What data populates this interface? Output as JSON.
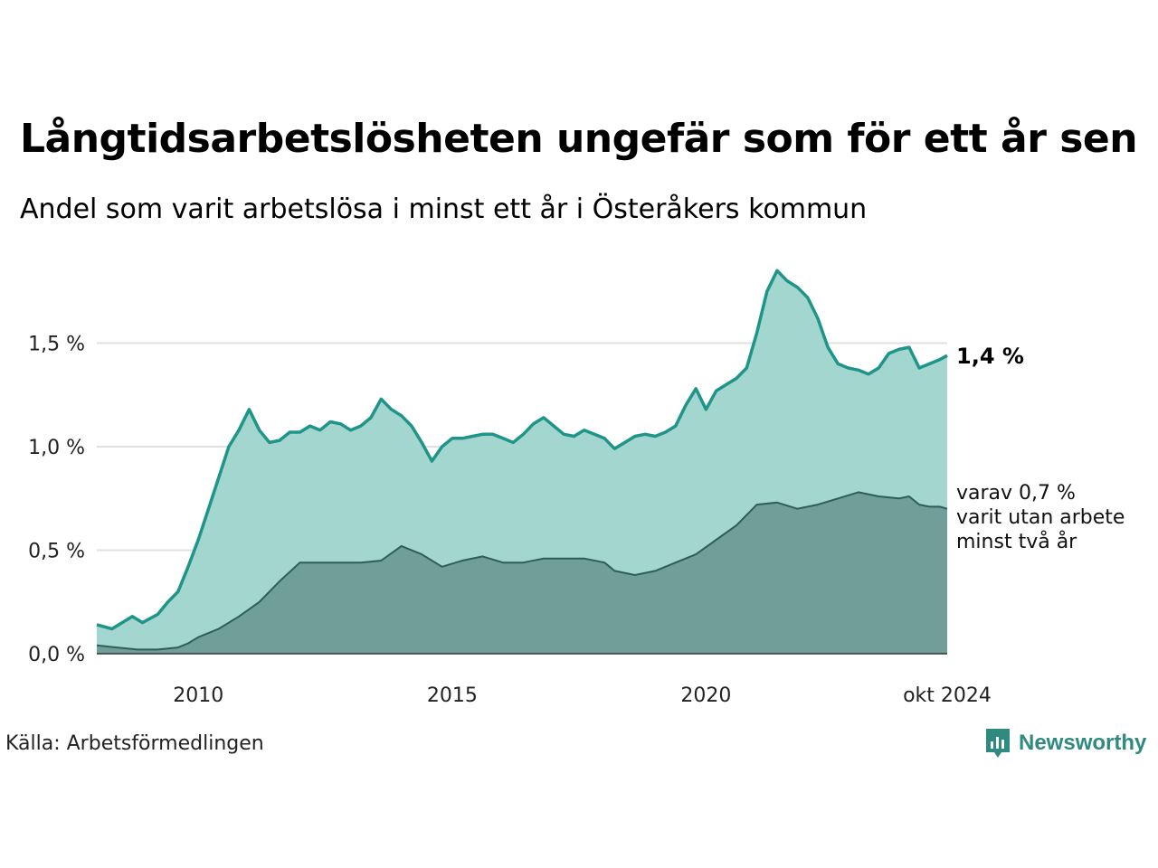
{
  "title": "Långtidsarbetslösheten ungefär som för ett år sen",
  "subtitle": "Andel som varit arbetslösa i minst ett år i Österåkers kommun",
  "source": "Källa: Arbetsförmedlingen",
  "brand": "Newsworthy",
  "end_label": "1,4 %",
  "sub_label_lines": [
    "varav 0,7 %",
    "varit utan arbete",
    "minst två år"
  ],
  "colors": {
    "total_line": "#1f9488",
    "total_fill": "#a3d6cf",
    "sub_line": "#2e5e57",
    "sub_fill": "#6f9f98",
    "grid": "#e0e0e0",
    "brand": "#2f8a80"
  },
  "chart_data": {
    "type": "area",
    "title": "Långtidsarbetslösheten ungefär som för ett år sen",
    "ylabel": "",
    "xlabel": "",
    "xlim": [
      2008.0,
      2024.75
    ],
    "ylim": [
      0,
      1.9
    ],
    "y_ticks": [
      0.0,
      0.5,
      1.0,
      1.5
    ],
    "y_tick_labels": [
      "0,0 %",
      "0,5 %",
      "1,0 %",
      "1,5 %"
    ],
    "x_ticks": [
      2010,
      2015,
      2020,
      2024.75
    ],
    "x_tick_labels": [
      "2010",
      "2015",
      "2020",
      "okt 2024"
    ],
    "series": [
      {
        "name": "Arbetslösa minst ett år",
        "points": [
          [
            2008.0,
            0.14
          ],
          [
            2008.3,
            0.12
          ],
          [
            2008.7,
            0.18
          ],
          [
            2008.9,
            0.15
          ],
          [
            2009.2,
            0.19
          ],
          [
            2009.4,
            0.25
          ],
          [
            2009.6,
            0.3
          ],
          [
            2009.8,
            0.42
          ],
          [
            2010.0,
            0.55
          ],
          [
            2010.2,
            0.7
          ],
          [
            2010.4,
            0.85
          ],
          [
            2010.6,
            1.0
          ],
          [
            2010.8,
            1.08
          ],
          [
            2011.0,
            1.18
          ],
          [
            2011.2,
            1.08
          ],
          [
            2011.4,
            1.02
          ],
          [
            2011.6,
            1.03
          ],
          [
            2011.8,
            1.07
          ],
          [
            2012.0,
            1.07
          ],
          [
            2012.2,
            1.1
          ],
          [
            2012.4,
            1.08
          ],
          [
            2012.6,
            1.12
          ],
          [
            2012.8,
            1.11
          ],
          [
            2013.0,
            1.08
          ],
          [
            2013.2,
            1.1
          ],
          [
            2013.4,
            1.14
          ],
          [
            2013.6,
            1.23
          ],
          [
            2013.8,
            1.18
          ],
          [
            2014.0,
            1.15
          ],
          [
            2014.2,
            1.1
          ],
          [
            2014.4,
            1.02
          ],
          [
            2014.6,
            0.93
          ],
          [
            2014.8,
            1.0
          ],
          [
            2015.0,
            1.04
          ],
          [
            2015.2,
            1.04
          ],
          [
            2015.4,
            1.05
          ],
          [
            2015.6,
            1.06
          ],
          [
            2015.8,
            1.06
          ],
          [
            2016.0,
            1.04
          ],
          [
            2016.2,
            1.02
          ],
          [
            2016.4,
            1.06
          ],
          [
            2016.6,
            1.11
          ],
          [
            2016.8,
            1.14
          ],
          [
            2017.0,
            1.1
          ],
          [
            2017.2,
            1.06
          ],
          [
            2017.4,
            1.05
          ],
          [
            2017.6,
            1.08
          ],
          [
            2017.8,
            1.06
          ],
          [
            2018.0,
            1.04
          ],
          [
            2018.2,
            0.99
          ],
          [
            2018.4,
            1.02
          ],
          [
            2018.6,
            1.05
          ],
          [
            2018.8,
            1.06
          ],
          [
            2019.0,
            1.05
          ],
          [
            2019.2,
            1.07
          ],
          [
            2019.4,
            1.1
          ],
          [
            2019.6,
            1.2
          ],
          [
            2019.8,
            1.28
          ],
          [
            2020.0,
            1.18
          ],
          [
            2020.2,
            1.27
          ],
          [
            2020.4,
            1.3
          ],
          [
            2020.6,
            1.33
          ],
          [
            2020.8,
            1.38
          ],
          [
            2021.0,
            1.55
          ],
          [
            2021.2,
            1.75
          ],
          [
            2021.4,
            1.85
          ],
          [
            2021.6,
            1.8
          ],
          [
            2021.8,
            1.77
          ],
          [
            2022.0,
            1.72
          ],
          [
            2022.2,
            1.62
          ],
          [
            2022.4,
            1.48
          ],
          [
            2022.6,
            1.4
          ],
          [
            2022.8,
            1.38
          ],
          [
            2023.0,
            1.37
          ],
          [
            2023.2,
            1.35
          ],
          [
            2023.4,
            1.38
          ],
          [
            2023.6,
            1.45
          ],
          [
            2023.8,
            1.47
          ],
          [
            2024.0,
            1.48
          ],
          [
            2024.2,
            1.38
          ],
          [
            2024.4,
            1.4
          ],
          [
            2024.6,
            1.42
          ],
          [
            2024.75,
            1.44
          ]
        ]
      },
      {
        "name": "varav minst två år",
        "points": [
          [
            2008.0,
            0.04
          ],
          [
            2008.4,
            0.03
          ],
          [
            2008.8,
            0.02
          ],
          [
            2009.2,
            0.02
          ],
          [
            2009.6,
            0.03
          ],
          [
            2009.8,
            0.05
          ],
          [
            2010.0,
            0.08
          ],
          [
            2010.4,
            0.12
          ],
          [
            2010.8,
            0.18
          ],
          [
            2011.2,
            0.25
          ],
          [
            2011.6,
            0.35
          ],
          [
            2012.0,
            0.44
          ],
          [
            2012.4,
            0.44
          ],
          [
            2012.8,
            0.44
          ],
          [
            2013.2,
            0.44
          ],
          [
            2013.6,
            0.45
          ],
          [
            2014.0,
            0.52
          ],
          [
            2014.4,
            0.48
          ],
          [
            2014.8,
            0.42
          ],
          [
            2015.2,
            0.45
          ],
          [
            2015.6,
            0.47
          ],
          [
            2016.0,
            0.44
          ],
          [
            2016.4,
            0.44
          ],
          [
            2016.8,
            0.46
          ],
          [
            2017.2,
            0.46
          ],
          [
            2017.6,
            0.46
          ],
          [
            2018.0,
            0.44
          ],
          [
            2018.2,
            0.4
          ],
          [
            2018.6,
            0.38
          ],
          [
            2019.0,
            0.4
          ],
          [
            2019.4,
            0.44
          ],
          [
            2019.8,
            0.48
          ],
          [
            2020.2,
            0.55
          ],
          [
            2020.6,
            0.62
          ],
          [
            2021.0,
            0.72
          ],
          [
            2021.4,
            0.73
          ],
          [
            2021.8,
            0.7
          ],
          [
            2022.2,
            0.72
          ],
          [
            2022.6,
            0.75
          ],
          [
            2023.0,
            0.78
          ],
          [
            2023.4,
            0.76
          ],
          [
            2023.8,
            0.75
          ],
          [
            2024.0,
            0.76
          ],
          [
            2024.2,
            0.72
          ],
          [
            2024.4,
            0.71
          ],
          [
            2024.6,
            0.71
          ],
          [
            2024.75,
            0.7
          ]
        ]
      }
    ]
  }
}
